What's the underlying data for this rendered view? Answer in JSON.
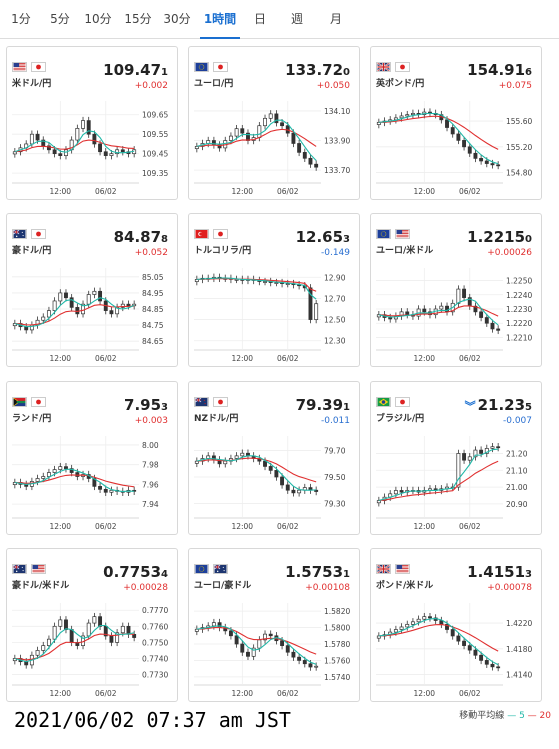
{
  "tabs": [
    "1分",
    "5分",
    "10分",
    "15分",
    "30分",
    "1時間",
    "日",
    "週",
    "月"
  ],
  "active_tab": "1時間",
  "timestamp": "2021/06/02 07:37 am JST",
  "legend": {
    "label": "移動平均線",
    "ma5": "5",
    "ma20": "20",
    "color_ma5": "#20b8a8",
    "color_ma20": "#e03030"
  },
  "chart_data": [
    {
      "type": "candlestick",
      "pair": "米ドル/円",
      "flags": [
        "us",
        "jp"
      ],
      "price_main": "109.47",
      "price_small": "1",
      "change": "+0.002",
      "direction": "up",
      "yticks": [
        "109.65",
        "109.55",
        "109.45",
        "109.35"
      ],
      "ylim": [
        109.32,
        109.7
      ],
      "xticks": [
        "12:00",
        "06/02"
      ],
      "close": [
        109.46,
        109.48,
        109.5,
        109.55,
        109.52,
        109.49,
        109.47,
        109.45,
        109.44,
        109.47,
        109.52,
        109.58,
        109.62,
        109.55,
        109.5,
        109.46,
        109.44,
        109.45,
        109.47,
        109.46,
        109.45,
        109.47
      ]
    },
    {
      "type": "candlestick",
      "pair": "ユーロ/円",
      "flags": [
        "eu",
        "jp"
      ],
      "price_main": "133.72",
      "price_small": "0",
      "change": "+0.050",
      "direction": "up",
      "yticks": [
        "134.10",
        "133.90",
        "133.70"
      ],
      "ylim": [
        133.64,
        134.14
      ],
      "xticks": [
        "12:00",
        "06/02"
      ],
      "close": [
        133.86,
        133.88,
        133.9,
        133.87,
        133.85,
        133.9,
        133.93,
        133.98,
        133.95,
        133.9,
        133.92,
        134.0,
        134.05,
        134.08,
        134.02,
        134.0,
        133.95,
        133.88,
        133.82,
        133.78,
        133.74,
        133.72
      ]
    },
    {
      "type": "candlestick",
      "pair": "英ポンド/円",
      "flags": [
        "gb",
        "jp"
      ],
      "price_main": "154.91",
      "price_small": "6",
      "change": "+0.075",
      "direction": "up",
      "yticks": [
        "155.60",
        "155.20",
        "154.80"
      ],
      "ylim": [
        154.7,
        155.85
      ],
      "xticks": [
        "12:00",
        "06/02"
      ],
      "close": [
        155.58,
        155.6,
        155.62,
        155.65,
        155.68,
        155.7,
        155.72,
        155.7,
        155.74,
        155.72,
        155.7,
        155.62,
        155.5,
        155.4,
        155.3,
        155.2,
        155.1,
        155.02,
        154.98,
        154.94,
        154.92,
        154.91
      ]
    },
    {
      "type": "candlestick",
      "pair": "豪ドル/円",
      "flags": [
        "au",
        "jp"
      ],
      "price_main": "84.87",
      "price_small": "8",
      "change": "+0.052",
      "direction": "up",
      "yticks": [
        "85.05",
        "84.95",
        "84.85",
        "84.75",
        "84.65"
      ],
      "ylim": [
        84.62,
        85.08
      ],
      "xticks": [
        "12:00",
        "06/02"
      ],
      "close": [
        84.76,
        84.74,
        84.72,
        84.75,
        84.78,
        84.8,
        84.84,
        84.9,
        84.95,
        84.92,
        84.86,
        84.82,
        84.88,
        84.94,
        84.96,
        84.9,
        84.84,
        84.82,
        84.86,
        84.88,
        84.87,
        84.88
      ]
    },
    {
      "type": "candlestick",
      "pair": "トルコリラ/円",
      "flags": [
        "tr",
        "jp"
      ],
      "price_main": "12.65",
      "price_small": "3",
      "change": "-0.149",
      "direction": "down",
      "yticks": [
        "12.90",
        "12.70",
        "12.50",
        "12.30"
      ],
      "ylim": [
        12.25,
        12.95
      ],
      "xticks": [
        "12:00",
        "06/02"
      ],
      "close": [
        12.88,
        12.89,
        12.89,
        12.9,
        12.89,
        12.89,
        12.88,
        12.88,
        12.87,
        12.88,
        12.87,
        12.86,
        12.86,
        12.85,
        12.85,
        12.84,
        12.84,
        12.83,
        12.82,
        12.8,
        12.5,
        12.65
      ]
    },
    {
      "type": "candlestick",
      "pair": "ユーロ/米ドル",
      "flags": [
        "eu",
        "us"
      ],
      "price_main": "1.2215",
      "price_small": "0",
      "change": "+0.00026",
      "direction": "up",
      "yticks": [
        "1.2250",
        "1.2240",
        "1.2230",
        "1.2220",
        "1.2210"
      ],
      "ylim": [
        1.2204,
        1.2256
      ],
      "xticks": [
        "12:00",
        "06/02"
      ],
      "close": [
        1.2226,
        1.2224,
        1.2223,
        1.2225,
        1.2228,
        1.2226,
        1.2225,
        1.223,
        1.2228,
        1.2226,
        1.223,
        1.2232,
        1.2228,
        1.2234,
        1.2244,
        1.2238,
        1.2232,
        1.2228,
        1.2224,
        1.222,
        1.2216,
        1.2215
      ]
    },
    {
      "type": "candlestick",
      "pair": "ランド/円",
      "flags": [
        "za",
        "jp"
      ],
      "price_main": "7.95",
      "price_small": "3",
      "change": "+0.003",
      "direction": "up",
      "yticks": [
        "8.00",
        "7.98",
        "7.96",
        "7.94"
      ],
      "ylim": [
        7.93,
        8.005
      ],
      "xticks": [
        "12:00",
        "06/02"
      ],
      "close": [
        7.962,
        7.96,
        7.958,
        7.963,
        7.966,
        7.968,
        7.972,
        7.975,
        7.978,
        7.976,
        7.972,
        7.968,
        7.97,
        7.966,
        7.958,
        7.955,
        7.952,
        7.954,
        7.953,
        7.952,
        7.954,
        7.953
      ]
    },
    {
      "type": "candlestick",
      "pair": "NZドル/円",
      "flags": [
        "nz",
        "jp"
      ],
      "price_main": "79.39",
      "price_small": "1",
      "change": "-0.011",
      "direction": "down",
      "yticks": [
        "79.70",
        "79.50",
        "79.30"
      ],
      "ylim": [
        79.22,
        79.78
      ],
      "xticks": [
        "12:00",
        "06/02"
      ],
      "close": [
        79.62,
        79.64,
        79.66,
        79.63,
        79.6,
        79.62,
        79.64,
        79.66,
        79.68,
        79.66,
        79.64,
        79.62,
        79.58,
        79.55,
        79.5,
        79.44,
        79.4,
        79.38,
        79.4,
        79.42,
        79.4,
        79.39
      ]
    },
    {
      "type": "candlestick",
      "pair": "ブラジル/円",
      "flags": [
        "br",
        "jp"
      ],
      "price_main": "21.23",
      "price_small": "5",
      "change": "-0.007",
      "direction": "down",
      "arrow": "»",
      "yticks": [
        "21.20",
        "21.10",
        "21.00",
        "20.90"
      ],
      "ylim": [
        20.84,
        21.28
      ],
      "xticks": [
        "12:00",
        "06/02"
      ],
      "close": [
        20.92,
        20.94,
        20.96,
        20.98,
        20.97,
        20.98,
        20.98,
        20.97,
        20.98,
        20.99,
        20.98,
        20.99,
        21.0,
        21.0,
        21.2,
        21.16,
        21.18,
        21.22,
        21.2,
        21.23,
        21.24,
        21.235
      ]
    },
    {
      "type": "candlestick",
      "pair": "豪ドル/米ドル",
      "flags": [
        "au",
        "us"
      ],
      "price_main": "0.7753",
      "price_small": "4",
      "change": "+0.00028",
      "direction": "up",
      "yticks": [
        "0.7770",
        "0.7760",
        "0.7750",
        "0.7740",
        "0.7730"
      ],
      "ylim": [
        0.7726,
        0.7772
      ],
      "xticks": [
        "12:00",
        "06/02"
      ],
      "close": [
        0.774,
        0.7738,
        0.7736,
        0.7742,
        0.7745,
        0.7748,
        0.7752,
        0.776,
        0.7764,
        0.7758,
        0.775,
        0.7748,
        0.7754,
        0.7762,
        0.7766,
        0.776,
        0.7754,
        0.775,
        0.7756,
        0.776,
        0.7755,
        0.7753
      ]
    },
    {
      "type": "candlestick",
      "pair": "ユーロ/豪ドル",
      "flags": [
        "eu",
        "au"
      ],
      "price_main": "1.5753",
      "price_small": "1",
      "change": "+0.00108",
      "direction": "up",
      "yticks": [
        "1.5820",
        "1.5800",
        "1.5780",
        "1.5760",
        "1.5740"
      ],
      "ylim": [
        1.5735,
        1.5825
      ],
      "xticks": [
        "12:00",
        "06/02"
      ],
      "close": [
        1.5798,
        1.58,
        1.5802,
        1.5806,
        1.58,
        1.5796,
        1.579,
        1.578,
        1.577,
        1.5765,
        1.5775,
        1.5785,
        1.5792,
        1.579,
        1.5784,
        1.5778,
        1.577,
        1.5764,
        1.576,
        1.5756,
        1.5752,
        1.5753
      ]
    },
    {
      "type": "candlestick",
      "pair": "ポンド/米ドル",
      "flags": [
        "gb",
        "us"
      ],
      "price_main": "1.4151",
      "price_small": "3",
      "change": "+0.00078",
      "direction": "up",
      "yticks": [
        "1.4220",
        "1.4180",
        "1.4140"
      ],
      "ylim": [
        1.413,
        1.4245
      ],
      "xticks": [
        "12:00",
        "06/02"
      ],
      "close": [
        1.42,
        1.4202,
        1.4206,
        1.421,
        1.4214,
        1.4218,
        1.4222,
        1.4226,
        1.423,
        1.4228,
        1.4224,
        1.4218,
        1.421,
        1.42,
        1.4192,
        1.4185,
        1.4178,
        1.417,
        1.4162,
        1.4156,
        1.4152,
        1.4151
      ]
    }
  ]
}
